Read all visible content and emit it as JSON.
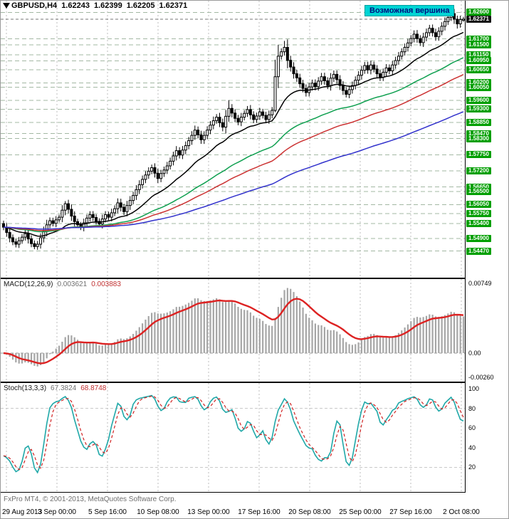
{
  "header": {
    "symbol_period": "GBPUSD,H4",
    "open": "1.62243",
    "high": "1.62399",
    "low": "1.62205",
    "close": "1.62371"
  },
  "annotation": {
    "text": "Возможная вершина",
    "bg": "#00d4d4",
    "fg": "#001080"
  },
  "price_scale": {
    "current": {
      "value": "1.62371",
      "bg": "#141414",
      "fg": "#ffffff"
    },
    "level_bg": "#009f00",
    "levels": [
      "1.62600",
      "1.61700",
      "1.61500",
      "1.61150",
      "1.60950",
      "1.60650",
      "1.60200",
      "1.60050",
      "1.59600",
      "1.59300",
      "1.58850",
      "1.58470",
      "1.58300",
      "1.57750",
      "1.57200",
      "1.56650",
      "1.56500",
      "1.56050",
      "1.55750",
      "1.55400",
      "1.54900",
      "1.54470"
    ]
  },
  "indicators": {
    "macd": {
      "label": "MACD(12,26,9)",
      "value_main": "0.003621",
      "value_signal": "0.003883",
      "scale": [
        "0.00749",
        "0.00",
        "-0.00260"
      ]
    },
    "stoch": {
      "label": "Stoch(13,3,3)",
      "value_main": "67.3824",
      "value_signal": "68.8748",
      "scale": [
        "100",
        "80",
        "60",
        "40",
        "20"
      ]
    }
  },
  "footer": {
    "copyright": "FxPro MT4, © 2001-2013, MetaQuotes Software Corp."
  },
  "time_axis": [
    "29 Aug 2013",
    "3 Sep 00:00",
    "5 Sep 16:00",
    "10 Sep 08:00",
    "13 Sep 00:00",
    "17 Sep 16:00",
    "20 Sep 08:00",
    "25 Sep 00:00",
    "27 Sep 16:00",
    "2 Oct 08:00"
  ],
  "chart_data": {
    "type": "candlestick",
    "symbol": "GBPUSD",
    "timeframe": "H4",
    "title": "GBPUSD H4 with MA set, MACD(12,26,9) and Stoch(13,3,3)",
    "price_range": [
      1.5356,
      1.63
    ],
    "current_price": 1.62371,
    "open_first": 1.554,
    "closes": [
      1.5528,
      1.551,
      1.5492,
      1.5478,
      1.547,
      1.5482,
      1.5494,
      1.5506,
      1.5488,
      1.5472,
      1.5462,
      1.547,
      1.5492,
      1.5514,
      1.5536,
      1.555,
      1.5541,
      1.5553,
      1.5562,
      1.5586,
      1.5608,
      1.5589,
      1.5566,
      1.5547,
      1.5536,
      1.5528,
      1.5543,
      1.5559,
      1.5571,
      1.5561,
      1.5548,
      1.5539,
      1.5556,
      1.5571,
      1.5562,
      1.5577,
      1.5591,
      1.5611,
      1.5596,
      1.5581,
      1.5602,
      1.5619,
      1.5636,
      1.5656,
      1.5673,
      1.5691,
      1.5706,
      1.5719,
      1.5731,
      1.5712,
      1.5694,
      1.5711,
      1.5723,
      1.5737,
      1.5753,
      1.5771,
      1.5789,
      1.5774,
      1.5791,
      1.5806,
      1.5823,
      1.5841,
      1.5859,
      1.5843,
      1.5826,
      1.5841,
      1.5859,
      1.5876,
      1.5891,
      1.5903,
      1.5884,
      1.5869,
      1.5906,
      1.5933,
      1.5917,
      1.5899,
      1.5887,
      1.5903,
      1.5916,
      1.5929,
      1.5911,
      1.5895,
      1.5907,
      1.5921,
      1.5909,
      1.5895,
      1.5911,
      1.5926,
      1.6041,
      1.6111,
      1.6126,
      1.6141,
      1.6097,
      1.6074,
      1.6051,
      1.6037,
      1.6017,
      1.6001,
      1.5987,
      1.6006,
      1.6019,
      1.6007,
      1.6026,
      1.6041,
      1.6027,
      1.6011,
      1.6036,
      1.6049,
      1.6031,
      1.6011,
      1.5994,
      1.5981,
      1.5997,
      1.6011,
      1.6029,
      1.6046,
      1.6063,
      1.6079,
      1.6064,
      1.6081,
      1.6067,
      1.6051,
      1.6039,
      1.6056,
      1.6071,
      1.6061,
      1.6081,
      1.6096,
      1.6111,
      1.6126,
      1.6141,
      1.6156,
      1.6171,
      1.6186,
      1.6171,
      1.6157,
      1.6176,
      1.6191,
      1.6206,
      1.6191,
      1.6177,
      1.6196,
      1.6213,
      1.6229,
      1.6243,
      1.6256,
      1.6237,
      1.6221,
      1.6236,
      1.62371
    ],
    "wick_base": 0.0005,
    "wick_overrides": {
      "4": {
        "l": 1.5459
      },
      "10": {
        "l": 1.5453
      },
      "20": {
        "h": 1.5617
      },
      "73": {
        "h": 1.5961
      },
      "88": {
        "l": 1.592
      },
      "91": {
        "h": 1.6163
      },
      "145": {
        "h": 1.626
      },
      "147": {
        "l": 1.6205
      }
    },
    "levels": [
      1.626,
      1.617,
      1.615,
      1.6115,
      1.6095,
      1.6065,
      1.602,
      1.6005,
      1.596,
      1.593,
      1.5885,
      1.5847,
      1.583,
      1.5775,
      1.572,
      1.5665,
      1.565,
      1.5605,
      1.5575,
      1.554,
      1.549,
      1.5447
    ],
    "moving_averages": [
      {
        "period": 21,
        "color": "#000000"
      },
      {
        "period": 55,
        "color": "#0fa050"
      },
      {
        "period": 80,
        "color": "#cc3333"
      },
      {
        "period": 150,
        "color": "#3232cc"
      }
    ],
    "macd": {
      "fast": 12,
      "slow": 26,
      "signal": 9,
      "range": [
        -0.0026,
        0.00749
      ],
      "last_main": 0.003621,
      "last_signal": 0.003883,
      "histogram_color": "#a6a6a6",
      "signal_color": "#dd2222"
    },
    "stoch": {
      "k": 13,
      "slowing": 3,
      "d": 3,
      "range": [
        0,
        100
      ],
      "last_main": 67.3824,
      "last_signal": 68.8748,
      "main_color": "#1fa8a8",
      "signal_color": "#d22222"
    }
  }
}
